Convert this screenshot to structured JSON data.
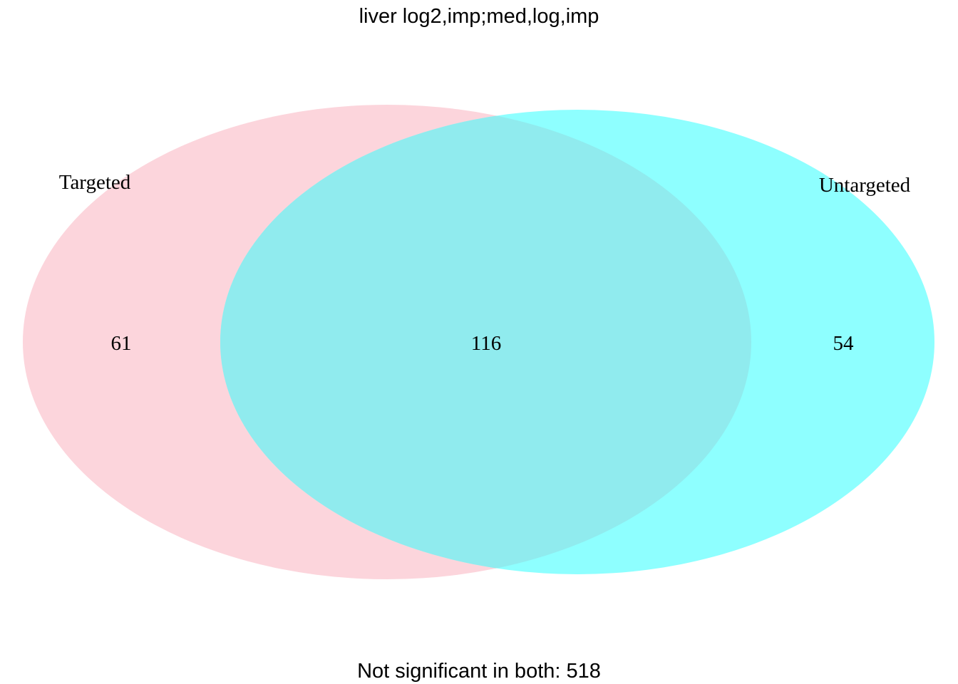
{
  "title": "liver log2,imp;med,log,imp",
  "footer": "Not significant in both: 518",
  "sets": [
    {
      "name": "Targeted",
      "only_count": "61",
      "color": "#fcd5dc"
    },
    {
      "name": "Untargeted",
      "only_count": "54",
      "color": "#8effff"
    }
  ],
  "overlap": {
    "count": "116",
    "color": "#90ebee"
  },
  "chart_data": {
    "type": "venn",
    "title": "liver log2,imp;med,log,imp",
    "sets": [
      "Targeted",
      "Untargeted"
    ],
    "regions": [
      {
        "sets": [
          "Targeted"
        ],
        "value": 61
      },
      {
        "sets": [
          "Targeted",
          "Untargeted"
        ],
        "value": 116
      },
      {
        "sets": [
          "Untargeted"
        ],
        "value": 54
      }
    ],
    "not_significant_in_both": 518
  }
}
